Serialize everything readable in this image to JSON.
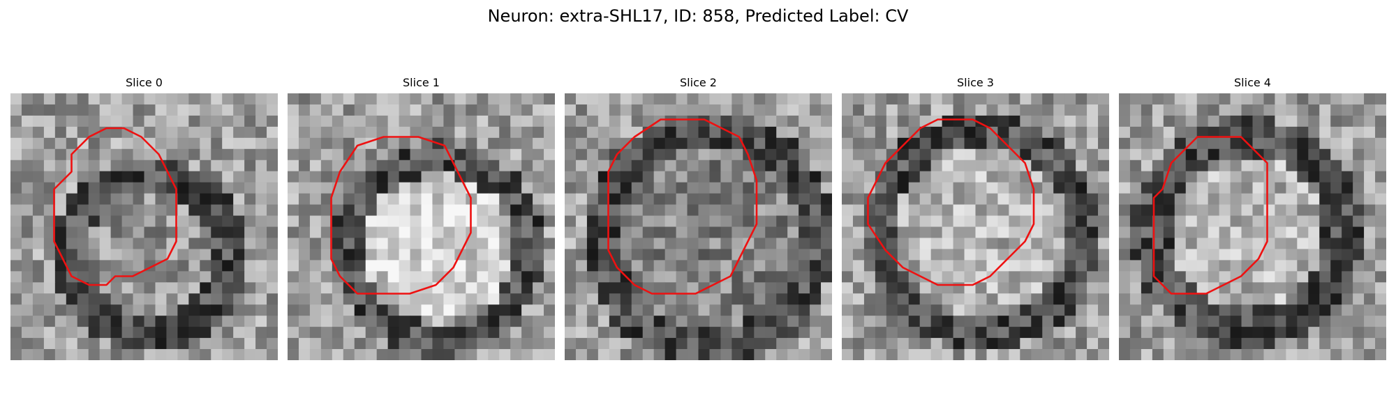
{
  "figure": {
    "title": "Neuron: extra-SHL17, ID: 858, Predicted Label: CV",
    "panels": [
      {
        "title": "Slice 0"
      },
      {
        "title": "Slice 1"
      },
      {
        "title": "Slice 2"
      },
      {
        "title": "Slice 3"
      },
      {
        "title": "Slice 4"
      }
    ]
  },
  "colors": {
    "contour": "#ee1111",
    "background": "#ffffff"
  }
}
